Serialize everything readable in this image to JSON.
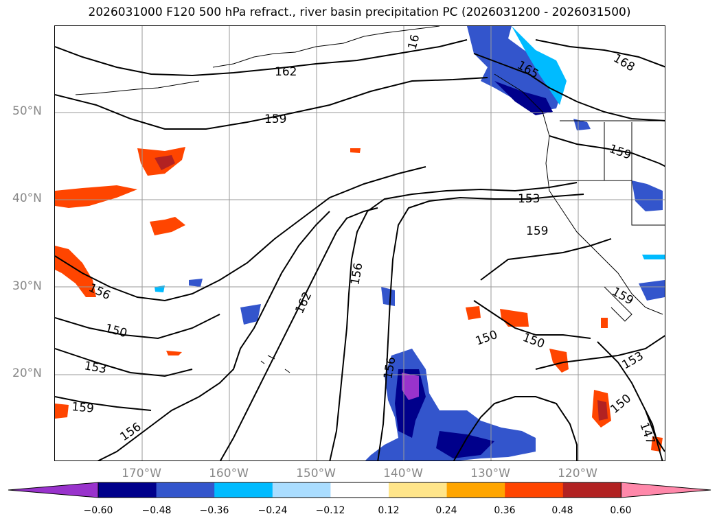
{
  "title": "2026031000 F120 500 hPa refract., river basin precipitation PC (2026031200 - 2026031500)",
  "lat_labels": [
    "50°N",
    "40°N",
    "30°N",
    "20°N"
  ],
  "lon_labels": [
    "170°W",
    "160°W",
    "150°W",
    "140°W",
    "130°W",
    "120°W"
  ],
  "contour_labels": [
    "162",
    "159",
    "156",
    "150",
    "153",
    "156",
    "162",
    "150",
    "150",
    "153",
    "150",
    "147",
    "159",
    "153",
    "165",
    "168",
    "159",
    "156",
    "156",
    "16",
    "159"
  ],
  "colorbar": {
    "ticks": [
      "−0.60",
      "−0.48",
      "−0.36",
      "−0.24",
      "−0.12",
      "0.12",
      "0.24",
      "0.36",
      "0.48",
      "0.60"
    ],
    "colors": [
      "#9933cc",
      "#00008b",
      "#3355cc",
      "#00bbff",
      "#aaddff",
      "#ffffff",
      "#ffe58a",
      "#ffa500",
      "#ff4500",
      "#b22222",
      "#ff88aa"
    ]
  },
  "colors": {
    "land_outline": "#000000",
    "grid": "#9a9a9a",
    "axis_label": "#888888"
  }
}
